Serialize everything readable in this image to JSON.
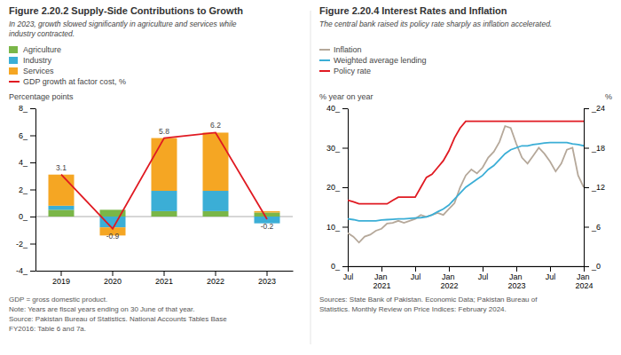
{
  "chart_data": [
    {
      "type": "bar",
      "stacked": true,
      "title": "Figure 2.20.2 Supply-Side Contributions to Growth",
      "subtitle": "In 2023, growth slowed significantly in agriculture and services while\nindustry contracted.",
      "ylabel": "Percentage points",
      "categories": [
        "2019",
        "2020",
        "2021",
        "2022",
        "2023"
      ],
      "ylim": [
        -4,
        8
      ],
      "yticks": [
        {
          "value": -4,
          "label": "-4_"
        },
        {
          "value": -2,
          "label": "-2_"
        },
        {
          "value": 0,
          "label": "0_"
        },
        {
          "value": 2,
          "label": "2_"
        },
        {
          "value": 4,
          "label": "4_"
        },
        {
          "value": 6,
          "label": "6_"
        },
        {
          "value": 8,
          "label": "8_"
        }
      ],
      "grid": false,
      "legend": "top-left",
      "series": [
        {
          "name": "Agriculture",
          "color": "#7ab648",
          "values": [
            0.5,
            0.5,
            0.4,
            0.4,
            0.3
          ]
        },
        {
          "name": "Industry",
          "color": "#3baed6",
          "values": [
            0.3,
            -0.8,
            1.5,
            1.5,
            -0.5
          ]
        },
        {
          "name": "Services",
          "color": "#f5a623",
          "values": [
            2.3,
            -0.6,
            3.9,
            4.3,
            0.1
          ]
        },
        {
          "name": "GDP growth at factor cost, %",
          "type": "line",
          "color": "#e01a22",
          "data_labels": true,
          "values": [
            3.1,
            -0.9,
            5.8,
            6.2,
            -0.2
          ]
        }
      ],
      "notes": [
        "GDP = gross domestic product.",
        "Note: Years are fiscal years ending on 30 June of that year.",
        "Source: Pakistan Bureau of Statistics. National Accounts Tables Base",
        "FY2016: Table 6 and 7a."
      ]
    },
    {
      "type": "line",
      "title": "Figure 2.20.4 Interest Rates and Inflation",
      "subtitle": "The central bank raised its policy rate sharply as inflation accelerated.",
      "ylabel": "% year on year",
      "y2label": "%",
      "categories": [
        "Jul",
        null,
        null,
        null,
        null,
        null,
        "Jan 2021",
        null,
        null,
        null,
        null,
        null,
        "Jul",
        null,
        null,
        null,
        null,
        null,
        "Jan 2022",
        null,
        null,
        null,
        null,
        null,
        "Jul",
        null,
        null,
        null,
        null,
        null,
        "Jan 2023",
        null,
        null,
        null,
        null,
        null,
        "Jul",
        null,
        null,
        null,
        null,
        null,
        "Jan 2024"
      ],
      "ylim": [
        0,
        40
      ],
      "yticks": [
        {
          "value": 0,
          "label": "0_"
        },
        {
          "value": 10,
          "label": "10_"
        },
        {
          "value": 20,
          "label": "20_"
        },
        {
          "value": 30,
          "label": "30_"
        },
        {
          "value": 40,
          "label": "40_"
        }
      ],
      "y2lim": [
        0,
        24
      ],
      "y2ticks": [
        {
          "value": 0,
          "label": "_0"
        },
        {
          "value": 6,
          "label": "_6"
        },
        {
          "value": 12,
          "label": "_12"
        },
        {
          "value": 18,
          "label": "_18"
        },
        {
          "value": 24,
          "label": "_24"
        }
      ],
      "grid": false,
      "legend": "top-left",
      "series": [
        {
          "name": "Inflation",
          "color": "#b5a89a",
          "values": [
            8.4,
            7.5,
            6.0,
            7.5,
            8.0,
            9.0,
            9.5,
            10.8,
            11.0,
            11.5,
            11.0,
            11.5,
            12.0,
            13.0,
            12.5,
            13.0,
            13.5,
            13.0,
            14.5,
            16.0,
            20.0,
            23.0,
            24.5,
            23.5,
            25.0,
            27.5,
            29.0,
            31.5,
            35.5,
            35.0,
            31.0,
            27.5,
            26.0,
            28.0,
            30.0,
            28.5,
            26.5,
            24.0,
            26.0,
            29.5,
            30.0,
            23.0,
            20.0
          ]
        },
        {
          "name": "Weighted average lending",
          "color": "#3baed6",
          "values": [
            12.0,
            11.8,
            11.5,
            11.5,
            11.5,
            11.5,
            11.7,
            11.8,
            11.9,
            12.0,
            12.0,
            12.1,
            12.2,
            12.3,
            12.5,
            13.0,
            13.8,
            14.5,
            15.5,
            17.0,
            18.5,
            20.0,
            21.0,
            22.0,
            23.0,
            24.5,
            25.5,
            27.0,
            28.5,
            29.5,
            30.0,
            30.5,
            30.5,
            30.8,
            31.0,
            31.2,
            31.3,
            31.3,
            31.3,
            31.3,
            31.0,
            30.8,
            30.5
          ]
        },
        {
          "name": "Policy rate",
          "color": "#e01a22",
          "values": [
            16.7,
            16.3,
            15.8,
            15.8,
            15.8,
            15.8,
            15.8,
            15.8,
            16.7,
            17.5,
            17.5,
            17.5,
            17.5,
            20.0,
            22.5,
            23.3,
            25.0,
            26.7,
            29.2,
            32.5,
            35.0,
            36.7,
            36.7,
            36.7,
            36.7,
            36.7,
            36.7,
            36.7,
            36.7,
            36.7,
            36.7,
            36.7,
            36.7,
            36.7,
            36.7,
            36.7,
            36.7,
            36.7,
            36.7,
            36.7,
            36.7,
            36.7,
            36.7
          ]
        }
      ],
      "notes": [
        "Sources: State Bank of Pakistan. Economic Data; Pakistan Bureau of",
        "Statistics. Monthly Review on Price Indices: February 2024."
      ]
    }
  ]
}
